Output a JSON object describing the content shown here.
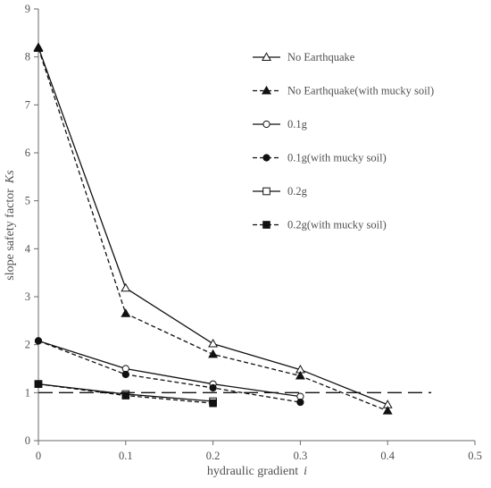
{
  "chart_data": {
    "type": "line",
    "title": "",
    "xlabel": "hydraulic gradient",
    "xlabel_symbol": "i",
    "ylabel": "slope safety factor",
    "ylabel_symbol": "Ks",
    "xlim": [
      0,
      0.5
    ],
    "ylim": [
      0,
      9
    ],
    "xticks": [
      "0",
      "0.1",
      "0.2",
      "0.3",
      "0.4",
      "0.5"
    ],
    "yticks": [
      "0",
      "1",
      "2",
      "3",
      "4",
      "5",
      "6",
      "7",
      "8",
      "9"
    ],
    "grid": false,
    "legend_position": "top-right",
    "reference_line": {
      "y": 1.0,
      "x_from": 0,
      "x_to": 0.45,
      "style": "long-dash"
    },
    "series": [
      {
        "name": "No Earthquake",
        "marker": "triangle-open",
        "line": "solid",
        "x": [
          0,
          0.1,
          0.2,
          0.3,
          0.4
        ],
        "y": [
          8.2,
          3.18,
          2.02,
          1.48,
          0.75
        ]
      },
      {
        "name": "No Earthquake(with mucky soil)",
        "marker": "triangle-filled",
        "line": "dashed",
        "x": [
          0,
          0.1,
          0.2,
          0.3,
          0.4
        ],
        "y": [
          8.18,
          2.65,
          1.8,
          1.35,
          0.62
        ]
      },
      {
        "name": "0.1g",
        "marker": "circle-open",
        "line": "solid",
        "x": [
          0,
          0.1,
          0.2,
          0.3
        ],
        "y": [
          2.08,
          1.5,
          1.18,
          0.92
        ]
      },
      {
        "name": "0.1g(with mucky soil)",
        "marker": "circle-filled",
        "line": "dashed",
        "x": [
          0,
          0.1,
          0.2,
          0.3
        ],
        "y": [
          2.08,
          1.38,
          1.1,
          0.8
        ]
      },
      {
        "name": "0.2g",
        "marker": "square-open",
        "line": "solid",
        "x": [
          0,
          0.1,
          0.2
        ],
        "y": [
          1.18,
          0.97,
          0.82
        ]
      },
      {
        "name": "0.2g(with mucky soil)",
        "marker": "square-filled",
        "line": "dashed",
        "x": [
          0,
          0.1,
          0.2
        ],
        "y": [
          1.18,
          0.94,
          0.78
        ]
      }
    ]
  }
}
